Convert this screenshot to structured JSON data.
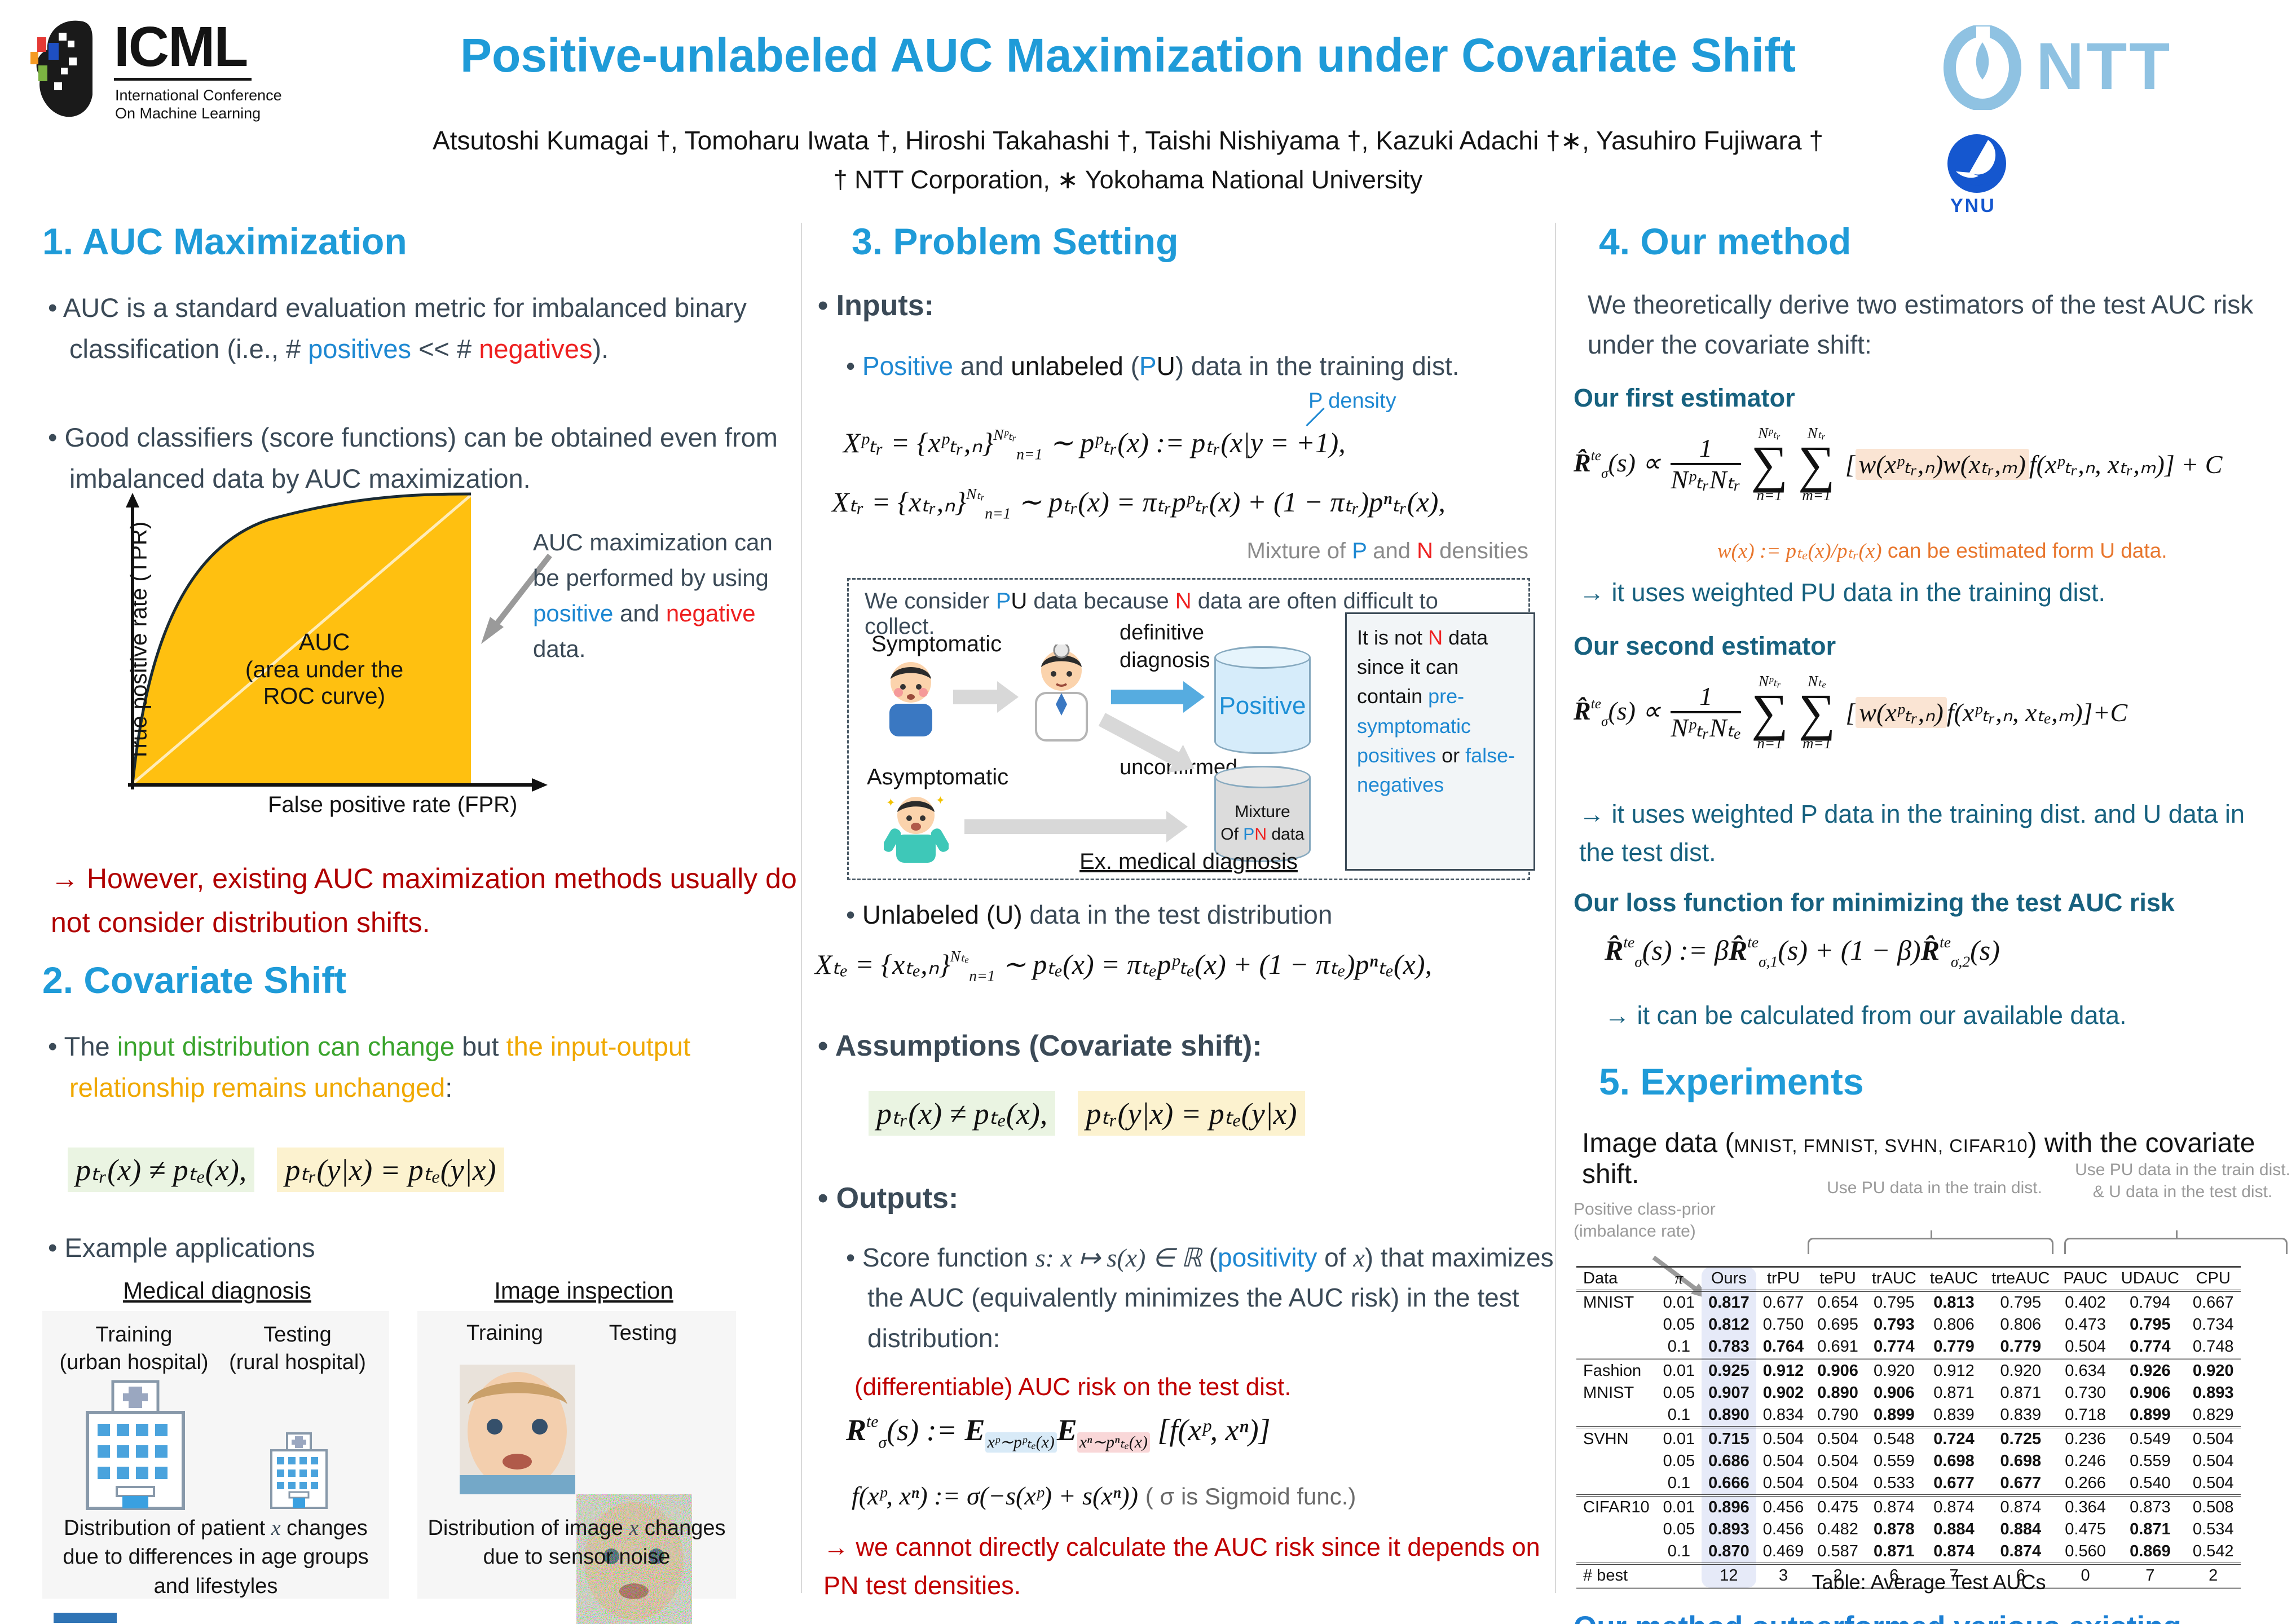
{
  "header": {
    "icml_acronym": "ICML",
    "icml_sub1": "International Conference",
    "icml_sub2": "On Machine Learning",
    "title": "Positive-unlabeled AUC Maximization under Covariate Shift",
    "authors": "Atsutoshi Kumagai †, Tomoharu Iwata †, Hiroshi Takahashi †, Taishi Nishiyama †, Kazuki Adachi †∗, Yasuhiro Fujiwara †",
    "affiliation": "† NTT Corporation,  ∗ Yokohama National University",
    "ntt_label": "NTT",
    "ynu_label": "YNU"
  },
  "sec1": {
    "heading": "1. AUC Maximization",
    "b1": [
      {
        "t": "• AUC is a standard evaluation metric for imbalanced binary classification (i.e., # ",
        "c": "dark"
      },
      {
        "t": "positives",
        "c": "blue"
      },
      {
        "t": " << # ",
        "c": "dark"
      },
      {
        "t": "negatives",
        "c": "red"
      },
      {
        "t": ").",
        "c": "dark"
      }
    ],
    "b2": "• Good classifiers (score functions) can be obtained even from imbalanced data by AUC maximization.",
    "roc": {
      "ylabel": "True positive rate (TPR)",
      "xlabel": "False positive rate (FPR)",
      "area_label_1": "AUC",
      "area_label_2": "(area under the ROC curve)",
      "annotation": [
        {
          "t": "AUC maximization can be performed by using ",
          "c": "dark"
        },
        {
          "t": "positive",
          "c": "blue"
        },
        {
          "t": " and ",
          "c": "dark"
        },
        {
          "t": "negative",
          "c": "red"
        },
        {
          "t": " data.",
          "c": "dark"
        }
      ]
    },
    "note": "→ However, existing AUC maximization methods usually do not consider distribution shifts."
  },
  "sec2": {
    "heading": "2. Covariate Shift",
    "b1": [
      {
        "t": "• The ",
        "c": "dark"
      },
      {
        "t": "input distribution can change",
        "c": "green"
      },
      {
        "t": " but ",
        "c": "dark"
      },
      {
        "t": "the input-output relationship remains unchanged",
        "c": "gold"
      },
      {
        "t": ":",
        "c": "dark"
      }
    ],
    "f1": "pₜᵣ(x) ≠ pₜₑ(x),",
    "f2": "pₜᵣ(y|x) = pₜₑ(y|x)",
    "b2": "• Example applications",
    "apps": {
      "medical": {
        "title": "Medical diagnosis",
        "train": "Training",
        "train_sub": "(urban hospital)",
        "test": "Testing",
        "test_sub": "(rural hospital)",
        "caption": [
          {
            "t": "Distribution of patient ",
            "c": "black"
          },
          {
            "t": "x",
            "c": "italic"
          },
          {
            "t": " changes due to differences in age groups and lifestyles",
            "c": "black"
          }
        ]
      },
      "image": {
        "title": "Image inspection",
        "train": "Training",
        "test": "Testing",
        "caption": [
          {
            "t": "Distribution of image ",
            "c": "black"
          },
          {
            "t": "x",
            "c": "italic"
          },
          {
            "t": " changes due to sensor noise",
            "c": "black"
          }
        ]
      }
    }
  },
  "sec3": {
    "heading": "3. Problem Setting",
    "inputs_label": "• Inputs:",
    "b1": [
      {
        "t": "• ",
        "c": "dark"
      },
      {
        "t": "Positive",
        "c": "blue"
      },
      {
        "t": " and ",
        "c": "dark"
      },
      {
        "t": "unlabeled",
        "c": "black"
      },
      {
        "t": " (",
        "c": "dark"
      },
      {
        "t": "P",
        "c": "blue"
      },
      {
        "t": "U",
        "c": "black"
      },
      {
        "t": ") data in the training dist.",
        "c": "dark"
      }
    ],
    "p_density": "P density",
    "f1": [
      {
        "t": "Xᵖₜᵣ = {xᵖₜᵣ,ₙ}"
      },
      {
        "t": "Nᵖₜᵣ",
        "c": "sup"
      },
      {
        "t": "n=1",
        "c": "sub"
      },
      {
        "t": " ∼ pᵖₜᵣ(x) := pₜᵣ(x|y = +1),"
      }
    ],
    "f2": [
      {
        "t": "Xₜᵣ = {xₜᵣ,ₙ}"
      },
      {
        "t": "Nₜᵣ",
        "c": "sup"
      },
      {
        "t": "n=1",
        "c": "sub"
      },
      {
        "t": " ∼ pₜᵣ(x) = πₜᵣpᵖₜᵣ(x) + (1 − πₜᵣ)pⁿₜᵣ(x),"
      }
    ],
    "mixture_note": [
      {
        "t": "Mixture of ",
        "c": "gray"
      },
      {
        "t": "P",
        "c": "blue"
      },
      {
        "t": " and ",
        "c": "gray"
      },
      {
        "t": "N",
        "c": "red"
      },
      {
        "t": " densities",
        "c": "gray"
      }
    ],
    "diagram": {
      "note": [
        {
          "t": "We consider ",
          "c": "dark"
        },
        {
          "t": "P",
          "c": "blue"
        },
        {
          "t": "U",
          "c": "black"
        },
        {
          "t": " data because ",
          "c": "dark"
        },
        {
          "t": "N",
          "c": "red"
        },
        {
          "t": " data are often difficult to collect.",
          "c": "dark"
        }
      ],
      "symptomatic": "Symptomatic",
      "asymptomatic": "Asymptomatic",
      "definitive": "definitive diagnosis",
      "unconfirmed": "unconfirmed",
      "positive_label": "Positive",
      "mixture_line1": "Mixture",
      "mixture_line2": [
        {
          "t": "Of ",
          "c": "black"
        },
        {
          "t": "P",
          "c": "blue"
        },
        {
          "t": "N",
          "c": "red"
        },
        {
          "t": " data",
          "c": "black"
        }
      ],
      "sidebox": [
        {
          "t": "It is not ",
          "c": "black"
        },
        {
          "t": "N",
          "c": "red"
        },
        {
          "t": " data since it can contain ",
          "c": "black"
        },
        {
          "t": "pre-symptomatic positives",
          "c": "blue"
        },
        {
          "t": " or ",
          "c": "black"
        },
        {
          "t": "false-negatives",
          "c": "blue"
        }
      ],
      "caption": "Ex. medical diagnosis"
    },
    "b2": [
      {
        "t": "• ",
        "c": "dark"
      },
      {
        "t": "Unlabeled (U)",
        "c": "black"
      },
      {
        "t": " data in the test distribution",
        "c": "dark"
      }
    ],
    "f3": [
      {
        "t": "Xₜₑ = {xₜₑ,ₙ}"
      },
      {
        "t": "Nₜₑ",
        "c": "sup"
      },
      {
        "t": "n=1",
        "c": "sub"
      },
      {
        "t": " ∼ pₜₑ(x) = πₜₑpᵖₜₑ(x) + (1 − πₜₑ)pⁿₜₑ(x),"
      }
    ],
    "assumptions_label": "• Assumptions (Covariate shift):",
    "a1": "pₜᵣ(x) ≠ pₜₑ(x),",
    "a2": "pₜᵣ(y|x) = pₜₑ(y|x)",
    "outputs_label": "• Outputs:",
    "score": [
      {
        "t": "• Score function ",
        "c": "dark"
      },
      {
        "t": "s: x ↦ s(x) ∈ ℝ",
        "c": "math"
      },
      {
        "t": " (",
        "c": "dark"
      },
      {
        "t": "positivity",
        "c": "blue"
      },
      {
        "t": " of ",
        "c": "dark"
      },
      {
        "t": "x",
        "c": "math"
      },
      {
        "t": ") that maximizes the AUC (equivalently minimizes the AUC risk) in the test distribution:",
        "c": "dark"
      }
    ],
    "diff_label": "(differentiable) AUC risk on the test dist.",
    "risk": [
      {
        "t": "R",
        "c": "cal"
      },
      {
        "t": "te",
        "c": "sup"
      },
      {
        "t": "σ",
        "c": "sub"
      },
      {
        "t": "(s) := "
      },
      {
        "t": "E",
        "c": "bb"
      },
      {
        "t": "xᵖ∼pᵖₜₑ(x)",
        "c": "sub hlblue"
      },
      {
        "t": "E",
        "c": "bb"
      },
      {
        "t": "xⁿ∼pⁿₜₑ(x)",
        "c": "sub hlpink"
      },
      {
        "t": " [f(xᵖ, xⁿ)]"
      }
    ],
    "fdef": "f(xᵖ, xⁿ) := σ(−s(xᵖ) + s(xⁿ))",
    "sigmoid_note": "( σ is Sigmoid func.)",
    "note": "→ we cannot directly calculate the AUC risk since it depends on PN test densities."
  },
  "sec4": {
    "heading": "4. Our method",
    "intro": "We theoretically derive two estimators of the test AUC risk under the covariate shift:",
    "first_label": "Our first estimator",
    "est1": {
      "lhs": [
        {
          "t": "R̂",
          "c": "cal"
        },
        {
          "t": "te",
          "c": "sup"
        },
        {
          "t": "σ",
          "c": "sub"
        },
        {
          "t": "(s) ∝"
        }
      ],
      "num": "1",
      "den": "NᵖₜᵣNₜᵣ",
      "s1top": "Nᵖₜᵣ",
      "s1bot": "n=1",
      "s2top": "Nₜᵣ",
      "s2bot": "m=1",
      "body": [
        {
          "t": "["
        },
        {
          "t": "w(xᵖₜᵣ,ₙ)w(xₜᵣ,ₘ)",
          "c": "hlpeach"
        },
        {
          "t": "f(xᵖₜᵣ,ₙ, xₜᵣ,ₘ)] + C"
        }
      ]
    },
    "w_note": [
      {
        "t": "w(x) := pₜₑ(x)/pₜᵣ(x)",
        "c": "orange math"
      },
      {
        "t": " can be estimated form U data.",
        "c": "orange"
      }
    ],
    "arrow1": "→ it uses weighted PU data in the training dist.",
    "second_label": "Our second estimator",
    "est2": {
      "lhs": [
        {
          "t": "R̂",
          "c": "cal"
        },
        {
          "t": "te",
          "c": "sup"
        },
        {
          "t": "σ",
          "c": "sub"
        },
        {
          "t": "(s) ∝"
        }
      ],
      "num": "1",
      "den": "NᵖₜᵣNₜₑ",
      "s1top": "Nᵖₜᵣ",
      "s1bot": "n=1",
      "s2top": "Nₜₑ",
      "s2bot": "m=1",
      "body": [
        {
          "t": "["
        },
        {
          "t": "w(xᵖₜᵣ,ₙ)",
          "c": "hlpeach"
        },
        {
          "t": "f(xᵖₜᵣ,ₙ, xₜₑ,ₘ)]+C"
        }
      ]
    },
    "arrow2": "→ it uses weighted P data in the training dist. and U data in the test dist.",
    "loss_label": "Our loss function for minimizing the test AUC risk",
    "loss": [
      {
        "t": "R̂",
        "c": "cal"
      },
      {
        "t": "te",
        "c": "sup"
      },
      {
        "t": "σ",
        "c": "sub"
      },
      {
        "t": "(s) := β"
      },
      {
        "t": "R̂",
        "c": "cal"
      },
      {
        "t": "te",
        "c": "sup"
      },
      {
        "t": "σ,1",
        "c": "sub"
      },
      {
        "t": "(s) + (1 − β)"
      },
      {
        "t": "R̂",
        "c": "cal"
      },
      {
        "t": "te",
        "c": "sup"
      },
      {
        "t": "σ,2",
        "c": "sub"
      },
      {
        "t": "(s)"
      }
    ],
    "arrow3": "→ it can be calculated from our available data."
  },
  "sec5": {
    "heading": "5. Experiments",
    "intro": [
      {
        "t": "Image data (",
        "c": "black"
      },
      {
        "t": "MNIST, FMNIST, SVHN, CIFAR10",
        "c": "black small"
      },
      {
        "t": ") with the covariate shift.",
        "c": "black"
      }
    ],
    "table": {
      "prior_note": "Positive class-prior (imbalance rate)",
      "bracket1": "Use PU data in the train dist.",
      "bracket2": "Use PU data in the train dist. & U data in the test dist.",
      "headers": [
        "Data",
        "π",
        "Ours",
        "trPU",
        "tePU",
        "trAUC",
        "teAUC",
        "trteAUC",
        "PAUC",
        "UDAUC",
        "CPU"
      ],
      "rows": [
        {
          "data": "MNIST",
          "pi": "0.01",
          "vals": [
            "0.817",
            "0.677",
            "0.654",
            "0.795",
            "0.813",
            "0.795",
            "0.402",
            "0.794",
            "0.667"
          ],
          "bold": [
            0,
            4
          ],
          "group": false
        },
        {
          "data": "",
          "pi": "0.05",
          "vals": [
            "0.812",
            "0.750",
            "0.695",
            "0.793",
            "0.806",
            "0.806",
            "0.473",
            "0.795",
            "0.734"
          ],
          "bold": [
            0,
            3,
            7
          ],
          "group": false
        },
        {
          "data": "",
          "pi": "0.1",
          "vals": [
            "0.783",
            "0.764",
            "0.691",
            "0.774",
            "0.779",
            "0.779",
            "0.504",
            "0.774",
            "0.748"
          ],
          "bold": [
            0,
            1,
            3,
            4,
            5,
            7
          ],
          "group": false
        },
        {
          "data": "Fashion",
          "pi": "0.01",
          "vals": [
            "0.925",
            "0.912",
            "0.906",
            "0.920",
            "0.912",
            "0.920",
            "0.634",
            "0.926",
            "0.920"
          ],
          "bold": [
            0,
            1,
            2,
            7,
            8
          ],
          "group": true
        },
        {
          "data": "MNIST",
          "pi": "0.05",
          "vals": [
            "0.907",
            "0.902",
            "0.890",
            "0.906",
            "0.871",
            "0.871",
            "0.730",
            "0.906",
            "0.893"
          ],
          "bold": [
            0,
            1,
            2,
            3,
            7,
            8
          ],
          "group": false
        },
        {
          "data": "",
          "pi": "0.1",
          "vals": [
            "0.890",
            "0.834",
            "0.790",
            "0.899",
            "0.839",
            "0.839",
            "0.718",
            "0.899",
            "0.829"
          ],
          "bold": [
            0,
            3,
            7
          ],
          "group": false
        },
        {
          "data": "SVHN",
          "pi": "0.01",
          "vals": [
            "0.715",
            "0.504",
            "0.504",
            "0.548",
            "0.724",
            "0.725",
            "0.236",
            "0.549",
            "0.504"
          ],
          "bold": [
            0,
            4,
            5
          ],
          "group": true
        },
        {
          "data": "",
          "pi": "0.05",
          "vals": [
            "0.686",
            "0.504",
            "0.504",
            "0.559",
            "0.698",
            "0.698",
            "0.246",
            "0.559",
            "0.504"
          ],
          "bold": [
            0,
            4,
            5
          ],
          "group": false
        },
        {
          "data": "",
          "pi": "0.1",
          "vals": [
            "0.666",
            "0.504",
            "0.504",
            "0.533",
            "0.677",
            "0.677",
            "0.266",
            "0.540",
            "0.504"
          ],
          "bold": [
            0,
            4,
            5
          ],
          "group": false
        },
        {
          "data": "CIFAR10",
          "pi": "0.01",
          "vals": [
            "0.896",
            "0.456",
            "0.475",
            "0.874",
            "0.874",
            "0.874",
            "0.364",
            "0.873",
            "0.508"
          ],
          "bold": [
            0
          ],
          "group": true
        },
        {
          "data": "",
          "pi": "0.05",
          "vals": [
            "0.893",
            "0.456",
            "0.482",
            "0.878",
            "0.884",
            "0.884",
            "0.475",
            "0.871",
            "0.534"
          ],
          "bold": [
            0,
            3,
            4,
            5,
            7
          ],
          "group": false
        },
        {
          "data": "",
          "pi": "0.1",
          "vals": [
            "0.870",
            "0.469",
            "0.587",
            "0.871",
            "0.874",
            "0.874",
            "0.560",
            "0.869",
            "0.542"
          ],
          "bold": [
            0,
            3,
            4,
            5,
            7
          ],
          "group": false
        }
      ],
      "best_label": "# best",
      "best": [
        "12",
        "3",
        "2",
        "6",
        "7",
        "6",
        "0",
        "7",
        "2"
      ],
      "caption": "Table: Average Test AUCs"
    },
    "conclusion": "Our method outperformed various existing methods."
  }
}
